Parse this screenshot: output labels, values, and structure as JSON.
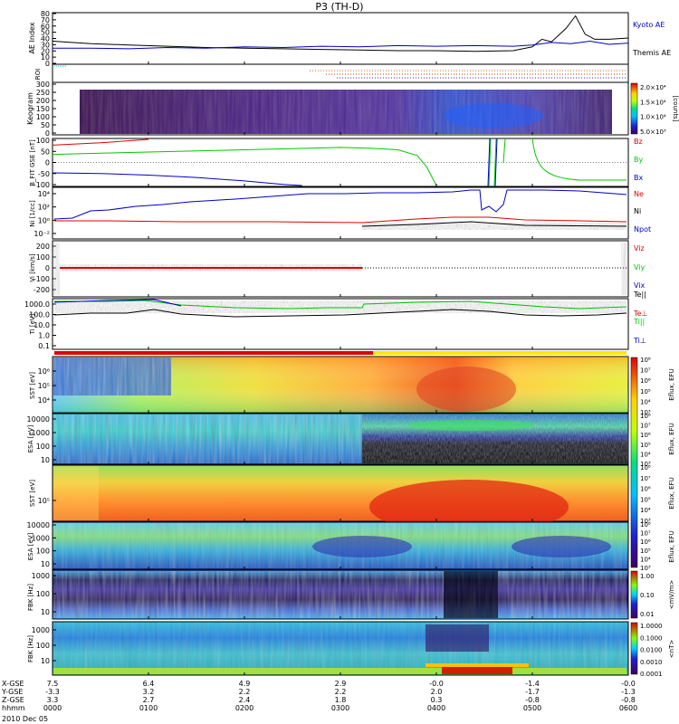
{
  "title": "P3 (TH-D)",
  "colors": {
    "kyoto": "#0000c8",
    "themis": "#000000",
    "red": "#e00000",
    "green": "#00c800",
    "blue": "#0000c8",
    "black": "#000000"
  },
  "chart_data": {
    "type": "line",
    "title": "P3 (TH-D)",
    "x_range": [
      "0000",
      "0600"
    ],
    "date": "2010 Dec 05",
    "panels": [
      {
        "id": "ae",
        "ylabel": "AE Index",
        "ylim": [
          0,
          80
        ],
        "yticks": [
          "0",
          "10",
          "20",
          "30",
          "40",
          "50",
          "60",
          "70",
          "80"
        ],
        "series": [
          {
            "name": "Kyoto AE",
            "color": "#0000c8",
            "x": [
              0,
              0.4,
              0.8,
              1.2,
              1.6,
              2.0,
              2.4,
              2.8,
              3.2,
              3.6,
              4.0,
              4.4,
              4.8,
              5.0,
              5.2,
              5.4,
              5.6,
              5.8,
              6.0
            ],
            "y": [
              24,
              24,
              23,
              25,
              24,
              26,
              25,
              27,
              26,
              28,
              27,
              28,
              27,
              29,
              33,
              31,
              35,
              30,
              32
            ]
          },
          {
            "name": "Themis AE",
            "color": "#000000",
            "x": [
              0,
              0.4,
              0.8,
              1.2,
              1.6,
              2.0,
              2.4,
              2.8,
              3.2,
              3.6,
              4.0,
              4.4,
              4.8,
              5.0,
              5.1,
              5.2,
              5.35,
              5.45,
              5.55,
              5.65,
              5.8,
              6.0
            ],
            "y": [
              35,
              31,
              29,
              27,
              25,
              24,
              23,
              22,
              21,
              20,
              20,
              19,
              20,
              26,
              38,
              34,
              55,
              75,
              46,
              38,
              38,
              40
            ]
          }
        ]
      },
      {
        "id": "roi",
        "ylabel": "ROI"
      },
      {
        "id": "keogram",
        "ylabel": "Keogram",
        "ylim": [
          0,
          300
        ],
        "yticks": [
          "0",
          "50",
          "100",
          "150",
          "200",
          "250",
          "300"
        ],
        "colorbar": {
          "label": "[counts]",
          "ticks": [
            "5.0×10³",
            "1.0×10⁴",
            "1.5×10⁴",
            "2.0×10⁴"
          ]
        }
      },
      {
        "id": "bfield",
        "ylabel": "B_FIT GSE [nT]",
        "ylim": [
          -100,
          100
        ],
        "yticks": [
          "-100",
          "-50",
          "0",
          "50",
          "100"
        ],
        "series": [
          {
            "name": "Bz",
            "color": "#e00000",
            "x": [
              0,
              0.5,
              1.0
            ],
            "y": [
              75,
              85,
              100
            ]
          },
          {
            "name": "By",
            "color": "#00c800",
            "x": [
              0,
              0.5,
              1.0,
              1.5,
              2.0,
              2.5,
              3.0,
              3.3,
              3.6,
              3.8,
              3.9,
              4.0
            ],
            "y": [
              35,
              40,
              45,
              50,
              55,
              60,
              65,
              62,
              55,
              30,
              -20,
              -100
            ]
          },
          {
            "name": "Bx",
            "color": "#0000c8",
            "x": [
              0,
              0.5,
              1.0,
              1.5,
              2.0,
              2.4,
              2.6
            ],
            "y": [
              -45,
              -48,
              -55,
              -65,
              -80,
              -95,
              -100
            ]
          }
        ],
        "legend": [
          "Bz",
          "By",
          "Bx"
        ]
      },
      {
        "id": "density",
        "ylabel": "Ni [1/cc]",
        "legend": [
          "Ne",
          "Ni",
          "Npot"
        ],
        "log_yticks": [
          "10⁻²",
          "10⁰",
          "10²",
          "10⁴"
        ]
      },
      {
        "id": "velocity",
        "ylabel": "Vi [km/s]",
        "ylim": [
          -300,
          300
        ],
        "yticks": [
          "-200",
          "-100",
          "0",
          "100",
          "200"
        ],
        "legend": [
          "Viz",
          "Viy",
          "Vix"
        ]
      },
      {
        "id": "temperature",
        "ylabel": "Ti [eV]",
        "yticks": [
          "0.1",
          "1.0",
          "10.0",
          "100.0",
          "1000.0"
        ],
        "legend": [
          "Te||",
          "Te⊥",
          "Ti||",
          "Ti⊥"
        ]
      },
      {
        "id": "sst_e",
        "ylabel": "SST [eV]",
        "yticks": [
          "10⁴",
          "10⁵",
          "10⁶"
        ]
      },
      {
        "id": "esa_e",
        "ylabel": "ESA [eV]",
        "yticks": [
          "10",
          "100",
          "1000",
          "10000"
        ]
      },
      {
        "id": "sst_i",
        "ylabel": "SST [eV]",
        "yticks": [
          "10⁵"
        ]
      },
      {
        "id": "esa_i",
        "ylabel": "ESA [eV]",
        "yticks": [
          "10",
          "100",
          "1000",
          "10000"
        ]
      },
      {
        "id": "fbk_e",
        "ylabel": "FBK [Hz]",
        "yticks": [
          "10",
          "100",
          "1000"
        ],
        "colorbar": {
          "label": "<mV/m>",
          "ticks": [
            "0.01",
            "0.10",
            "1.00"
          ]
        }
      },
      {
        "id": "fbk_b",
        "ylabel": "FBK [Hz]",
        "yticks": [
          "10",
          "100",
          "1000"
        ],
        "colorbar": {
          "label": "<nT>",
          "ticks": [
            "0.0001",
            "0.0010",
            "0.0100",
            "0.1000",
            "1.0000"
          ]
        }
      }
    ],
    "spectrogram_colorbar": {
      "label": "Eflux, EFU",
      "ticks": [
        "10³",
        "10⁴",
        "10⁵",
        "10⁶",
        "10⁷",
        "10⁸"
      ]
    },
    "x_axis": {
      "rows": [
        {
          "label": "X-GSE",
          "values": [
            "7.5",
            "6.4",
            "4.9",
            "2.9",
            "-0.0",
            "-1.4",
            "-0.0"
          ]
        },
        {
          "label": "Y-GSE",
          "values": [
            "-3.3",
            "3.2",
            "2.2",
            "2.2",
            "2.0",
            "-1.7",
            "-1.3"
          ]
        },
        {
          "label": "Z-GSE",
          "values": [
            "3.3",
            "2.7",
            "2.4",
            "1.8",
            "0.3",
            "-0.8",
            "-0.8"
          ]
        },
        {
          "label": "hhmm",
          "values": [
            "0000",
            "0100",
            "0200",
            "0300",
            "0400",
            "0500",
            "0600"
          ]
        }
      ],
      "date": "2010 Dec 05"
    }
  }
}
